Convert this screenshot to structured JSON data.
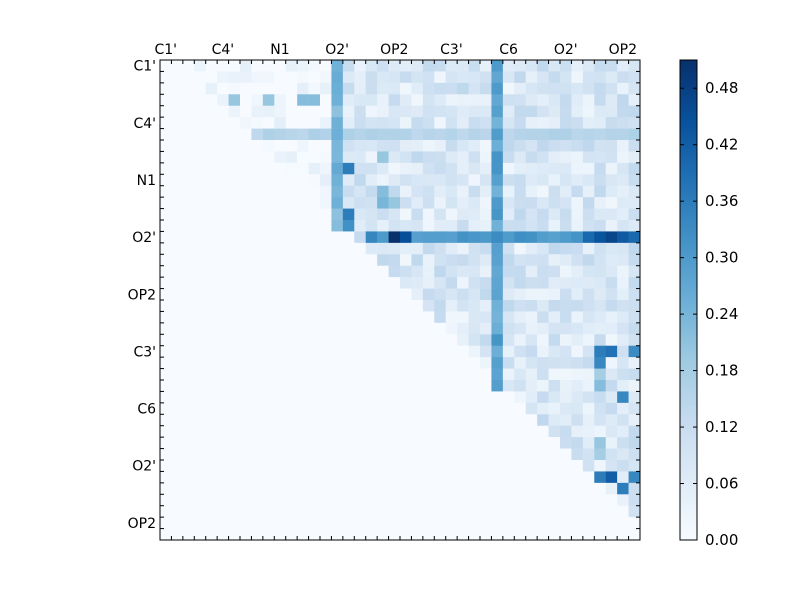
{
  "chart_data": {
    "type": "heatmap",
    "title": "",
    "xlabel": "",
    "ylabel": "",
    "matrix_size": 42,
    "x_tick_labels": [
      "C1'",
      "C4'",
      "N1",
      "O2'",
      "OP2",
      "C3'",
      "C6",
      "O2'",
      "OP2"
    ],
    "y_tick_labels": [
      "C1'",
      "C4'",
      "N1",
      "O2'",
      "OP2",
      "C3'",
      "C6",
      "O2'",
      "OP2"
    ],
    "x_tick_positions": [
      0.5,
      5.5,
      10.5,
      15.5,
      20.5,
      25.5,
      30.5,
      35.5,
      40.5
    ],
    "y_tick_positions": [
      0.5,
      5.5,
      10.5,
      15.5,
      20.5,
      25.5,
      30.5,
      35.5,
      40.5
    ],
    "colorbar": {
      "min": 0.0,
      "max": 0.51,
      "tick_values": [
        0.0,
        0.06,
        0.12,
        0.18,
        0.24,
        0.3,
        0.36,
        0.42,
        0.48
      ],
      "tick_labels": [
        "0.00",
        "0.06",
        "0.12",
        "0.18",
        "0.24",
        "0.30",
        "0.36",
        "0.42",
        "0.48"
      ],
      "colormap": "Blues"
    },
    "notes": "Upper-triangular matrix; lower triangle ~0. Approximate values read from colors.",
    "strong_rows": [
      {
        "row": 15,
        "from_col": 18,
        "value": 0.33
      },
      {
        "row": 6,
        "from_col": 8,
        "value": 0.16
      }
    ],
    "strong_cols": [
      {
        "col": 29,
        "to_row": 38,
        "value": 0.3
      },
      {
        "col": 15,
        "to_row": 15,
        "value": 0.26
      }
    ],
    "hot_cells": [
      {
        "r": 15,
        "c": 20,
        "v": 0.51
      },
      {
        "r": 15,
        "c": 21,
        "v": 0.45
      },
      {
        "r": 15,
        "c": 38,
        "v": 0.44
      },
      {
        "r": 15,
        "c": 39,
        "v": 0.47
      },
      {
        "r": 15,
        "c": 40,
        "v": 0.43
      },
      {
        "r": 15,
        "c": 41,
        "v": 0.4
      },
      {
        "r": 15,
        "c": 37,
        "v": 0.4
      },
      {
        "r": 15,
        "c": 19,
        "v": 0.3
      },
      {
        "r": 13,
        "c": 16,
        "v": 0.36
      },
      {
        "r": 9,
        "c": 16,
        "v": 0.36
      },
      {
        "r": 14,
        "c": 16,
        "v": 0.32
      },
      {
        "r": 25,
        "c": 38,
        "v": 0.36
      },
      {
        "r": 25,
        "c": 39,
        "v": 0.38
      },
      {
        "r": 26,
        "c": 38,
        "v": 0.34
      },
      {
        "r": 25,
        "c": 41,
        "v": 0.33
      },
      {
        "r": 29,
        "c": 40,
        "v": 0.34
      },
      {
        "r": 36,
        "c": 39,
        "v": 0.42
      },
      {
        "r": 36,
        "c": 38,
        "v": 0.36
      },
      {
        "r": 37,
        "c": 40,
        "v": 0.36
      },
      {
        "r": 36,
        "c": 41,
        "v": 0.34
      },
      {
        "r": 28,
        "c": 38,
        "v": 0.22
      },
      {
        "r": 27,
        "c": 38,
        "v": 0.18
      },
      {
        "r": 33,
        "c": 38,
        "v": 0.2
      },
      {
        "r": 34,
        "c": 38,
        "v": 0.18
      },
      {
        "r": 11,
        "c": 19,
        "v": 0.22
      },
      {
        "r": 12,
        "c": 19,
        "v": 0.24
      },
      {
        "r": 12,
        "c": 20,
        "v": 0.2
      },
      {
        "r": 8,
        "c": 19,
        "v": 0.2
      },
      {
        "r": 1,
        "c": 15,
        "v": 0.26
      },
      {
        "r": 3,
        "c": 6,
        "v": 0.2
      },
      {
        "r": 3,
        "c": 9,
        "v": 0.2
      },
      {
        "r": 3,
        "c": 12,
        "v": 0.22
      },
      {
        "r": 3,
        "c": 13,
        "v": 0.22
      },
      {
        "r": 2,
        "c": 29,
        "v": 0.3
      }
    ]
  }
}
